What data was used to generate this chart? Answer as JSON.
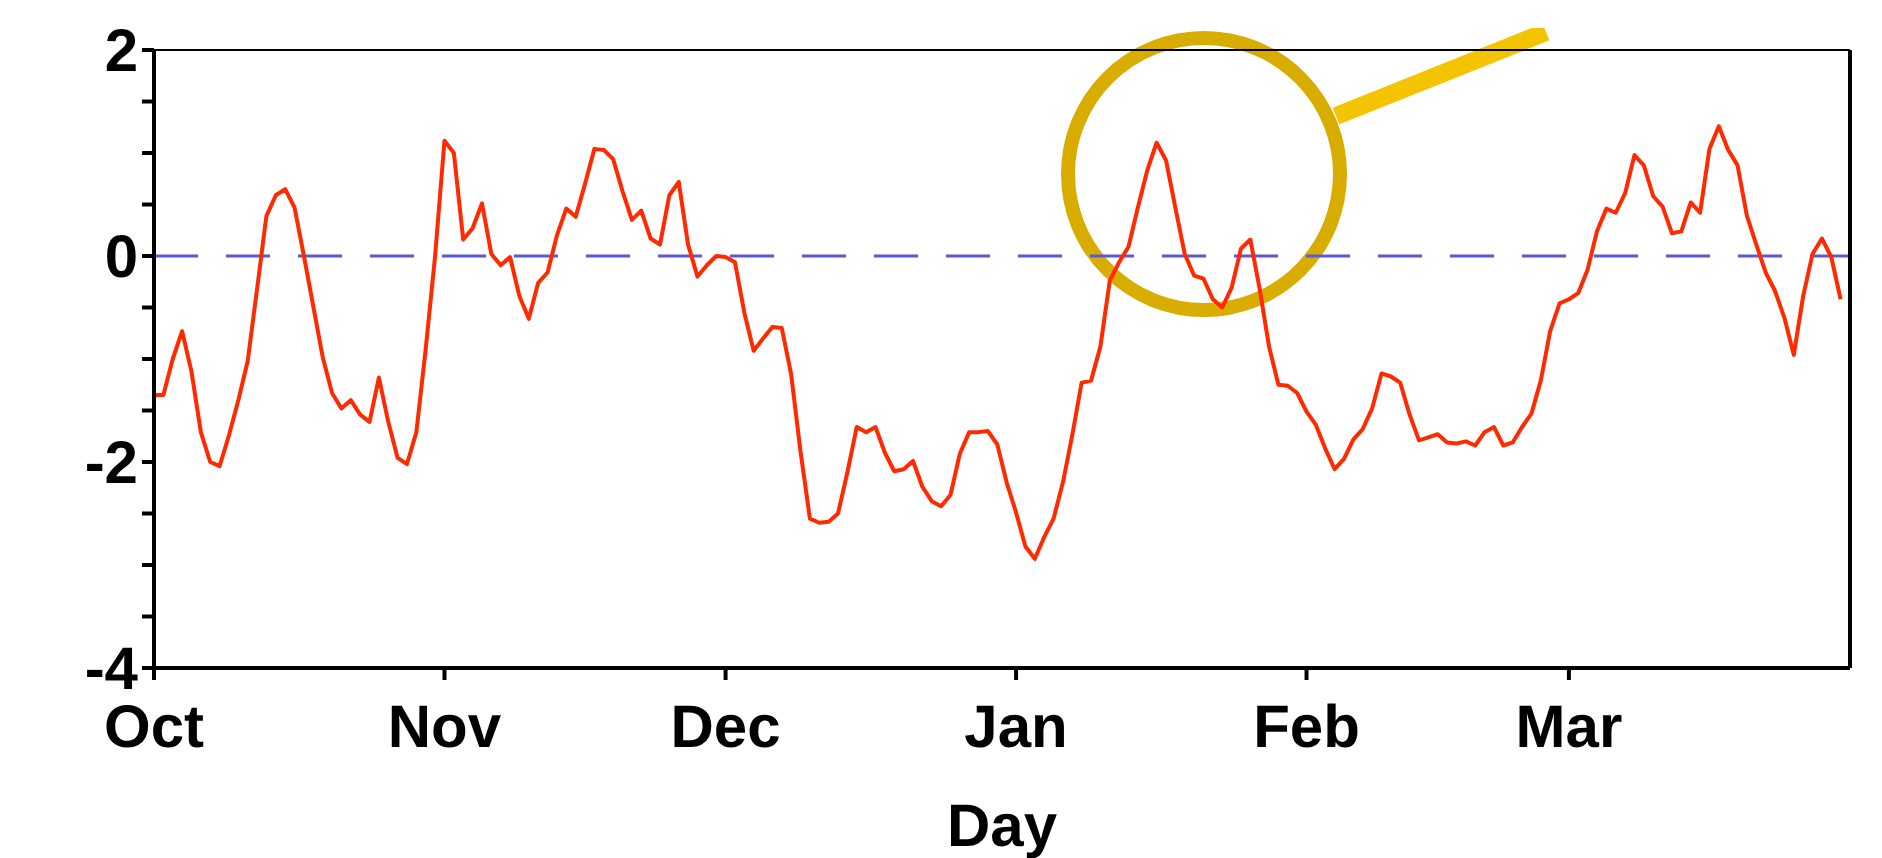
{
  "chart_data": {
    "type": "line",
    "xlabel": "Day",
    "categories": [
      "Oct",
      null,
      null,
      null,
      null,
      null,
      null,
      null,
      null,
      null,
      null,
      null,
      null,
      null,
      null,
      null,
      null,
      null,
      null,
      null,
      null,
      null,
      null,
      null,
      null,
      null,
      null,
      null,
      null,
      null,
      null,
      "Nov",
      null,
      null,
      null,
      null,
      null,
      null,
      null,
      null,
      null,
      null,
      null,
      null,
      null,
      null,
      null,
      null,
      null,
      null,
      null,
      null,
      null,
      null,
      null,
      null,
      null,
      null,
      null,
      null,
      null,
      "Dec",
      null,
      null,
      null,
      null,
      null,
      null,
      null,
      null,
      null,
      null,
      null,
      null,
      null,
      null,
      null,
      null,
      null,
      null,
      null,
      null,
      null,
      null,
      null,
      null,
      null,
      null,
      null,
      null,
      null,
      null,
      "Jan",
      null,
      null,
      null,
      null,
      null,
      null,
      null,
      null,
      null,
      null,
      null,
      null,
      null,
      null,
      null,
      null,
      null,
      null,
      null,
      null,
      null,
      null,
      null,
      null,
      null,
      null,
      null,
      null,
      null,
      null,
      "Feb",
      null,
      null,
      null,
      null,
      null,
      null,
      null,
      null,
      null,
      null,
      null,
      null,
      null,
      null,
      null,
      null,
      null,
      null,
      null,
      null,
      null,
      null,
      null,
      null,
      null,
      null,
      null,
      "Mar",
      null,
      null,
      null,
      null,
      null,
      null,
      null,
      null,
      null,
      null,
      null,
      null,
      null,
      null,
      null,
      null,
      null,
      null,
      null,
      null,
      null,
      null,
      null,
      null,
      null,
      null,
      null,
      null,
      null,
      null
    ],
    "series": [
      {
        "color": "#ff2a00",
        "values": [
          -1.35,
          -1.35,
          -1.0,
          -0.73,
          -1.12,
          -1.71,
          -2.0,
          -2.04,
          -1.74,
          -1.4,
          -1.02,
          -0.32,
          0.39,
          0.59,
          0.65,
          0.47,
          0,
          -0.49,
          -0.98,
          -1.33,
          -1.48,
          -1.4,
          -1.54,
          -1.61,
          -1.18,
          -1.61,
          -1.96,
          -2.02,
          -1.71,
          -0.9,
          0,
          1.12,
          1.0,
          0.16,
          0.27,
          0.51,
          0.02,
          -0.09,
          -0.01,
          -0.39,
          -0.61,
          -0.26,
          -0.16,
          0.2,
          0.46,
          0.38,
          0.7,
          1.04,
          1.03,
          0.94,
          0.63,
          0.35,
          0.44,
          0.17,
          0.11,
          0.59,
          0.72,
          0.11,
          -0.2,
          -0.09,
          0.0,
          -0.01,
          -0.06,
          -0.55,
          -0.92,
          -0.8,
          -0.69,
          -0.7,
          -1.15,
          -1.9,
          -2.55,
          -2.59,
          -2.58,
          -2.5,
          -2.1,
          -1.66,
          -1.71,
          -1.66,
          -1.91,
          -2.09,
          -2.07,
          -1.99,
          -2.24,
          -2.38,
          -2.43,
          -2.32,
          -1.92,
          -1.71,
          -1.71,
          -1.7,
          -1.83,
          -2.2,
          -2.49,
          -2.82,
          -2.94,
          -2.73,
          -2.55,
          -2.2,
          -1.74,
          -1.23,
          -1.21,
          -0.88,
          -0.24,
          -0.06,
          0.09,
          0.47,
          0.83,
          1.1,
          0.93,
          0.47,
          0.02,
          -0.19,
          -0.22,
          -0.42,
          -0.5,
          -0.31,
          0.07,
          0.16,
          -0.32,
          -0.88,
          -1.25,
          -1.26,
          -1.33,
          -1.51,
          -1.64,
          -1.87,
          -2.07,
          -1.97,
          -1.78,
          -1.68,
          -1.48,
          -1.14,
          -1.17,
          -1.23,
          -1.54,
          -1.79,
          -1.76,
          -1.73,
          -1.81,
          -1.82,
          -1.8,
          -1.84,
          -1.71,
          -1.66,
          -1.84,
          -1.81,
          -1.66,
          -1.53,
          -1.21,
          -0.73,
          -0.46,
          -0.42,
          -0.36,
          -0.13,
          0.24,
          0.46,
          0.42,
          0.61,
          0.98,
          0.88,
          0.58,
          0.48,
          0.22,
          0.24,
          0.52,
          0.42,
          1.04,
          1.26,
          1.03,
          0.88,
          0.39,
          0.11,
          -0.16,
          -0.34,
          -0.6,
          -0.96,
          -0.39,
          0.02,
          0.17,
          -0.01,
          -0.42,
          null
        ]
      }
    ],
    "ylim": [
      -4,
      2
    ],
    "yticks": [
      -4,
      {
        "value": -3.5,
        "label": null
      },
      {
        "value": -3,
        "label": null
      },
      {
        "value": -2.5,
        "label": null
      },
      -2,
      {
        "value": -1.5,
        "label": null
      },
      {
        "value": -1,
        "label": null
      },
      {
        "value": -0.5,
        "label": null
      },
      0,
      {
        "value": 0.5,
        "label": null
      },
      {
        "value": 1,
        "label": null
      },
      {
        "value": 1.5,
        "label": null
      },
      2
    ],
    "ref_lines": [
      {
        "axis": "y",
        "value": 0,
        "color": "#5a5ad2",
        "line_style": "dashed"
      }
    ],
    "grid": false,
    "legend": false,
    "marker": "none",
    "line_style": "solid"
  }
}
